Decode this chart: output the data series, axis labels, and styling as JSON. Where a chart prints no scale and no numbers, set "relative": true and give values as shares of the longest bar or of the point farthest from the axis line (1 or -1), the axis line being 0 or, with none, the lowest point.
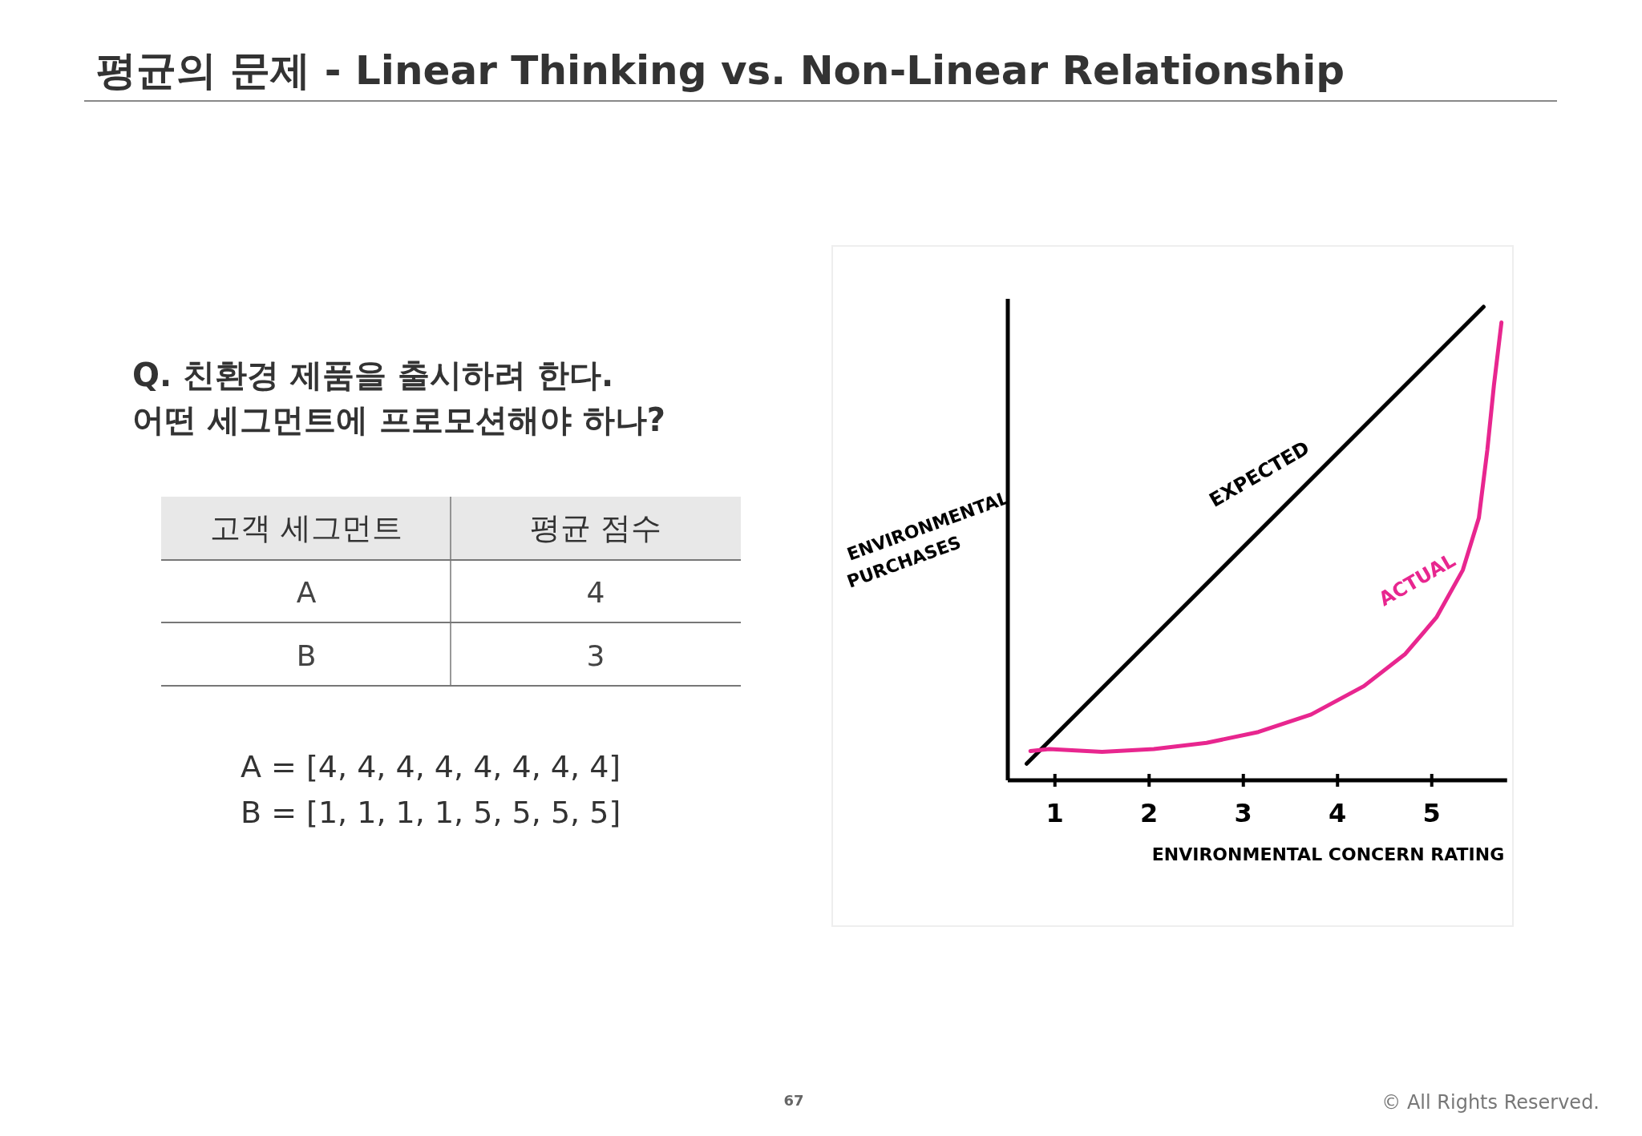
{
  "chart_data": [
    {
      "type": "other",
      "title": "평균의 문제 - Linear Thinking vs. Non-Linear Relationship",
      "annotations": [
        "Q. 친환경 제품을 출시하려 한다.",
        "어떤 세그먼트에 프로모션해야 하나?",
        "고객 세그먼트",
        "평균 점수",
        "A",
        "4",
        "B",
        "3",
        "A = [4, 4, 4, 4, 4, 4, 4, 4]",
        "B = [1, 1, 1, 1, 5, 5, 5, 5]",
        "67",
        "© All Rights Reserved."
      ]
    },
    {
      "type": "line",
      "relative": true,
      "xlabel": "ENVIRONMENTAL CONCERN RATING",
      "ylabel": "ENVIRONMENTAL PURCHASES",
      "xlim": [
        0.5,
        5.8
      ],
      "xticks": [
        1,
        2,
        3,
        4,
        5
      ],
      "grid": false,
      "series": [
        {
          "name": "EXPECTED",
          "color": "#000000",
          "x": [
            0.7,
            5.55
          ],
          "values": [
            0.035,
            1
          ]
        },
        {
          "name": "ACTUAL",
          "color": "#e8268f",
          "x": [
            0.74,
            0.94,
            1.5,
            2.05,
            2.61,
            3.16,
            3.72,
            4.28,
            4.72,
            5.05,
            5.33,
            5.5,
            5.59,
            5.66,
            5.74
          ],
          "values": [
            0.062,
            0.066,
            0.06,
            0.066,
            0.079,
            0.102,
            0.139,
            0.199,
            0.267,
            0.344,
            0.444,
            0.554,
            0.698,
            0.834,
            0.967
          ]
        }
      ]
    }
  ]
}
